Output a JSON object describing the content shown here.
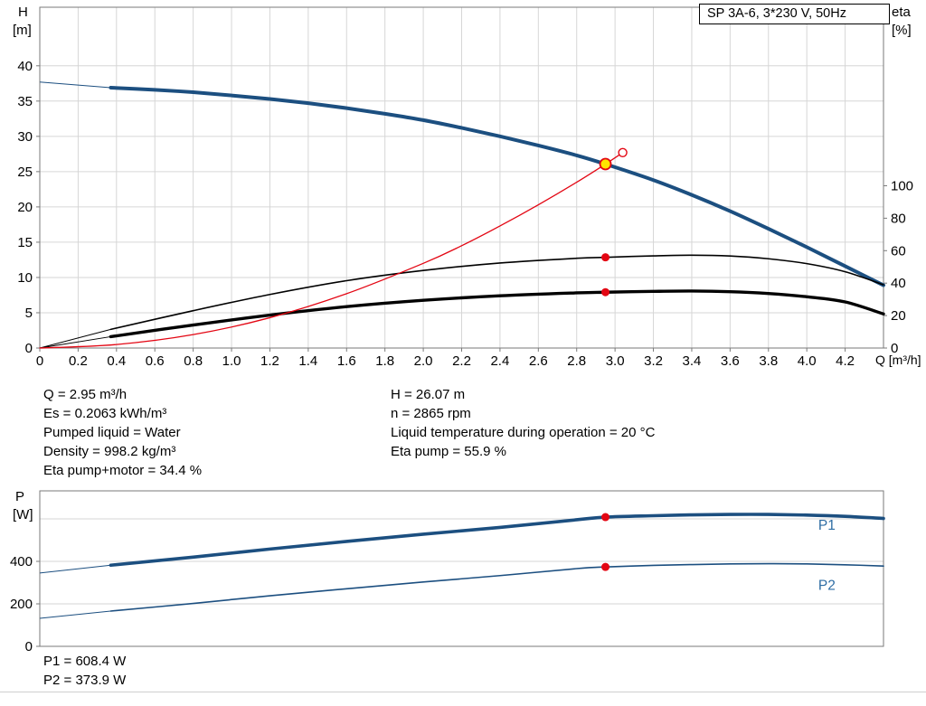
{
  "header": {
    "title_box": "SP 3A-6, 3*230 V, 50Hz"
  },
  "axis_labels": {
    "h": "H",
    "h_unit": "[m]",
    "eta": "eta",
    "eta_unit": "[%]",
    "q": "Q [m³/h]",
    "p": "P",
    "p_unit": "[W]"
  },
  "info": {
    "left": [
      "Q = 2.95 m³/h",
      "Es = 0.2063 kWh/m³",
      "Pumped liquid = Water",
      "Density = 998.2 kg/m³",
      "Eta pump+motor = 34.4 %"
    ],
    "right": [
      "H = 26.07 m",
      "n = 2865 rpm",
      "Liquid temperature during operation = 20 °C",
      "Eta pump = 55.9 %"
    ]
  },
  "footer": [
    "P1 = 608.4 W",
    "P2 = 373.9 W"
  ],
  "colors": {
    "curve_blue": "#1c4f80",
    "black": "#000000",
    "red": "#e30613",
    "grid": "#d6d6d6",
    "border": "#7a7a7a",
    "duty_fill": "#ffe600",
    "duty_ring": "#e30613",
    "label_blue": "#2e6da4"
  },
  "chart_data": [
    {
      "type": "line",
      "title": "SP 3A-6, 3*230 V, 50Hz",
      "xlabel": "Q [m³/h]",
      "ylabel": "H [m]",
      "y2label": "eta [%]",
      "xlim": [
        0,
        4.4
      ],
      "ylim": [
        0,
        48.3
      ],
      "grid": true,
      "x_ticks": [
        0,
        0.2,
        0.4,
        0.6,
        0.8,
        1.0,
        1.2,
        1.4,
        1.6,
        1.8,
        2.0,
        2.2,
        2.4,
        2.6,
        2.8,
        3.0,
        3.2,
        3.4,
        3.6,
        3.8,
        4.0,
        4.2
      ],
      "x_tick_labels": [
        "0",
        "0.2",
        "0.4",
        "0.6",
        "0.8",
        "1.0",
        "1.2",
        "1.4",
        "1.6",
        "1.8",
        "2.0",
        "2.2",
        "2.4",
        "2.6",
        "2.8",
        "3.0",
        "3.2",
        "3.4",
        "3.6",
        "3.8",
        "4.0",
        "4.2"
      ],
      "y_ticks": [
        0,
        5,
        10,
        15,
        20,
        25,
        30,
        35,
        40
      ],
      "y_tick_labels": [
        "0",
        "5",
        "10",
        "15",
        "20",
        "25",
        "30",
        "35",
        "40"
      ],
      "right_axis": {
        "scale": 0.23,
        "ticks": [
          0,
          20,
          40,
          60,
          80,
          100
        ],
        "labels": [
          "0",
          "20",
          "40",
          "60",
          "80",
          "100"
        ]
      },
      "series": [
        {
          "name": "pump-qh-curve",
          "axis": "left",
          "color": "curve_blue",
          "width": 4,
          "lead": [
            [
              0,
              37.7
            ],
            [
              0.37,
              36.9
            ]
          ],
          "points": [
            [
              0.37,
              36.9
            ],
            [
              0.6,
              36.6
            ],
            [
              0.8,
              36.25
            ],
            [
              1.0,
              35.8
            ],
            [
              1.2,
              35.3
            ],
            [
              1.4,
              34.7
            ],
            [
              1.6,
              34.0
            ],
            [
              1.8,
              33.2
            ],
            [
              2.0,
              32.3
            ],
            [
              2.2,
              31.2
            ],
            [
              2.4,
              30.0
            ],
            [
              2.6,
              28.7
            ],
            [
              2.8,
              27.3
            ],
            [
              2.95,
              26.07
            ],
            [
              3.2,
              23.8
            ],
            [
              3.4,
              21.7
            ],
            [
              3.6,
              19.4
            ],
            [
              3.8,
              16.9
            ],
            [
              4.0,
              14.3
            ],
            [
              4.2,
              11.6
            ],
            [
              4.4,
              8.9
            ]
          ]
        },
        {
          "name": "eta-pump-curve",
          "axis": "right",
          "color": "black",
          "width": 1.6,
          "lead": [
            [
              0,
              0
            ],
            [
              0.37,
              11.5
            ]
          ],
          "points": [
            [
              0.37,
              11.5
            ],
            [
              0.8,
              23
            ],
            [
              1.2,
              33
            ],
            [
              1.6,
              41.5
            ],
            [
              2.0,
              47.8
            ],
            [
              2.4,
              52.4
            ],
            [
              2.8,
              55.3
            ],
            [
              2.95,
              55.9
            ],
            [
              3.2,
              56.8
            ],
            [
              3.4,
              57.2
            ],
            [
              3.6,
              56.7
            ],
            [
              3.8,
              55
            ],
            [
              4.0,
              52
            ],
            [
              4.2,
              47
            ],
            [
              4.4,
              39
            ]
          ]
        },
        {
          "name": "eta-pump-motor-curve",
          "axis": "right",
          "color": "black",
          "width": 3.4,
          "lead": [
            [
              0,
              0
            ],
            [
              0.37,
              7
            ]
          ],
          "points": [
            [
              0.37,
              7
            ],
            [
              0.8,
              14.2
            ],
            [
              1.2,
              20.3
            ],
            [
              1.6,
              25.5
            ],
            [
              2.0,
              29.4
            ],
            [
              2.4,
              32.2
            ],
            [
              2.8,
              34.0
            ],
            [
              2.95,
              34.4
            ],
            [
              3.2,
              34.9
            ],
            [
              3.4,
              35.1
            ],
            [
              3.6,
              34.7
            ],
            [
              3.8,
              33.6
            ],
            [
              4.0,
              31.6
            ],
            [
              4.2,
              28.4
            ],
            [
              4.4,
              21
            ]
          ]
        },
        {
          "name": "system-curve",
          "axis": "left",
          "color": "red",
          "width": 1.3,
          "end_marker": "open-circle",
          "points": [
            [
              0,
              0
            ],
            [
              0.4,
              0.5
            ],
            [
              0.8,
              1.9
            ],
            [
              1.2,
              4.3
            ],
            [
              1.6,
              7.7
            ],
            [
              2.0,
              12.0
            ],
            [
              2.2,
              14.5
            ],
            [
              2.4,
              17.3
            ],
            [
              2.6,
              20.3
            ],
            [
              2.8,
              23.5
            ],
            [
              2.95,
              26.07
            ],
            [
              3.04,
              27.7
            ]
          ]
        }
      ],
      "markers": [
        {
          "name": "duty-point",
          "style": "duty",
          "axis": "left",
          "x": 2.95,
          "y": 26.07
        },
        {
          "name": "eta-pump-point",
          "style": "red-dot",
          "axis": "right",
          "x": 2.95,
          "y": 55.9
        },
        {
          "name": "eta-pump-motor-point",
          "style": "red-dot",
          "axis": "right",
          "x": 2.95,
          "y": 34.4
        }
      ]
    },
    {
      "type": "line",
      "title": "",
      "xlabel": "",
      "ylabel": "P [W]",
      "xlim": [
        0,
        4.4
      ],
      "ylim": [
        0,
        732
      ],
      "grid": true,
      "y_ticks": [
        0,
        200,
        400
      ],
      "y_tick_labels": [
        "0",
        "200",
        "400"
      ],
      "y_grid_extra": [
        600
      ],
      "series": [
        {
          "name": "p1-curve",
          "axis": "left",
          "color": "curve_blue",
          "width": 3.6,
          "label": "P1",
          "label_at": [
            4.06,
            549
          ],
          "lead": [
            [
              0,
              345
            ],
            [
              0.37,
              382
            ]
          ],
          "points": [
            [
              0.37,
              382
            ],
            [
              0.8,
              420
            ],
            [
              1.2,
              458
            ],
            [
              1.6,
              494
            ],
            [
              2.0,
              528
            ],
            [
              2.4,
              560
            ],
            [
              2.8,
              596
            ],
            [
              2.95,
              608.4
            ],
            [
              3.2,
              615
            ],
            [
              3.4,
              619
            ],
            [
              3.6,
              621
            ],
            [
              3.8,
              621
            ],
            [
              4.0,
              618
            ],
            [
              4.2,
              612
            ],
            [
              4.4,
              602
            ]
          ]
        },
        {
          "name": "p2-curve",
          "axis": "left",
          "color": "curve_blue",
          "width": 1.6,
          "label": "P2",
          "label_at": [
            4.06,
            265
          ],
          "lead": [
            [
              0,
              132
            ],
            [
              0.37,
              166
            ]
          ],
          "points": [
            [
              0.37,
              166
            ],
            [
              0.8,
              202
            ],
            [
              1.2,
              238
            ],
            [
              1.6,
              271
            ],
            [
              2.0,
              303
            ],
            [
              2.4,
              333
            ],
            [
              2.8,
              366
            ],
            [
              2.95,
              373.9
            ],
            [
              3.2,
              381
            ],
            [
              3.4,
              385
            ],
            [
              3.6,
              388
            ],
            [
              3.8,
              389
            ],
            [
              4.0,
              388
            ],
            [
              4.2,
              384
            ],
            [
              4.4,
              378
            ]
          ]
        }
      ],
      "markers": [
        {
          "name": "p1-point",
          "style": "red-dot",
          "axis": "left",
          "x": 2.95,
          "y": 608.4
        },
        {
          "name": "p2-point",
          "style": "red-dot",
          "axis": "left",
          "x": 2.95,
          "y": 373.9
        }
      ]
    }
  ]
}
